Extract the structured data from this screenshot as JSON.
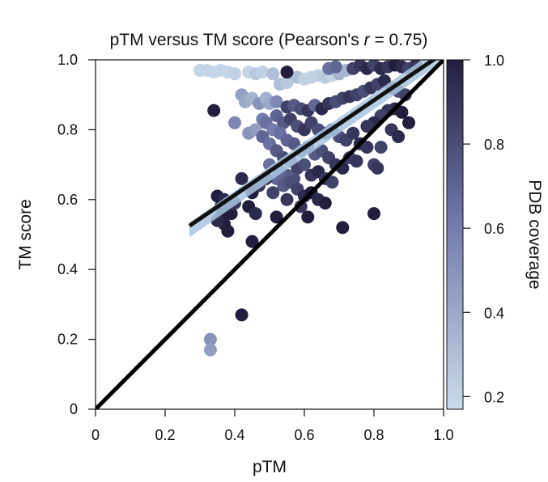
{
  "chart_data": {
    "type": "scatter",
    "title_main": "pTM versus TM score (Pearson's ",
    "title_r": "r",
    "title_tail": " = 0.75)",
    "xlabel": "pTM",
    "ylabel": "TM score",
    "xlim": [
      0,
      1
    ],
    "ylim": [
      0,
      1
    ],
    "x_ticks": [
      0,
      0.2,
      0.4,
      0.6,
      0.8,
      1.0
    ],
    "x_tick_labels": [
      "0",
      "0.2",
      "0.4",
      "0.6",
      "0.8",
      "1.0"
    ],
    "y_ticks": [
      0,
      0.2,
      0.4,
      0.6,
      0.8,
      1.0
    ],
    "y_tick_labels": [
      "0",
      "0.2",
      "0.4",
      "0.6",
      "0.8",
      "1.0"
    ],
    "grid": false,
    "colorbar": {
      "label": "PDB coverage",
      "range": [
        0.17,
        1.0
      ],
      "ticks": [
        0.2,
        0.4,
        0.6,
        0.8,
        1.0
      ],
      "tick_labels": [
        "0.2",
        "0.4",
        "0.6",
        "0.8",
        "1.0"
      ],
      "color_low": "#c9dcea",
      "color_mid": "#6f77a8",
      "color_high": "#221e3e",
      "placement": "right"
    },
    "reference_line": {
      "from": [
        0,
        0
      ],
      "to": [
        1,
        1
      ],
      "color": "#000000"
    },
    "fit_line": {
      "from": [
        0.27,
        0.525
      ],
      "to": [
        1.0,
        1.02
      ],
      "color": "#111111",
      "band_color": "#a9c6e0"
    },
    "points": [
      [
        0.3,
        0.97,
        0.2
      ],
      [
        0.32,
        0.97,
        0.2
      ],
      [
        0.34,
        0.965,
        0.2
      ],
      [
        0.36,
        0.97,
        0.2
      ],
      [
        0.38,
        0.965,
        0.2
      ],
      [
        0.4,
        0.96,
        0.22
      ],
      [
        0.44,
        0.965,
        0.2
      ],
      [
        0.46,
        0.96,
        0.25
      ],
      [
        0.48,
        0.965,
        0.22
      ],
      [
        0.51,
        0.96,
        0.3
      ],
      [
        0.53,
        0.93,
        0.3
      ],
      [
        0.55,
        0.935,
        0.25
      ],
      [
        0.58,
        0.95,
        0.3
      ],
      [
        0.6,
        0.945,
        0.22
      ],
      [
        0.62,
        0.95,
        0.22
      ],
      [
        0.64,
        0.955,
        0.22
      ],
      [
        0.66,
        0.95,
        0.25
      ],
      [
        0.68,
        0.955,
        0.2
      ],
      [
        0.7,
        0.96,
        0.35
      ],
      [
        0.72,
        0.97,
        0.35
      ],
      [
        0.55,
        0.965,
        1.0
      ],
      [
        0.67,
        0.975,
        0.65
      ],
      [
        0.69,
        0.98,
        0.7
      ],
      [
        0.74,
        0.975,
        0.85
      ],
      [
        0.76,
        0.985,
        0.9
      ],
      [
        0.78,
        0.975,
        0.95
      ],
      [
        0.8,
        0.985,
        0.85
      ],
      [
        0.82,
        0.975,
        0.95
      ],
      [
        0.84,
        0.98,
        0.9
      ],
      [
        0.86,
        0.985,
        1.0
      ],
      [
        0.88,
        0.98,
        0.95
      ],
      [
        0.9,
        0.975,
        0.85
      ],
      [
        0.92,
        0.985,
        0.9
      ],
      [
        0.42,
        0.9,
        0.45
      ],
      [
        0.43,
        0.88,
        0.4
      ],
      [
        0.45,
        0.89,
        0.35
      ],
      [
        0.47,
        0.875,
        0.5
      ],
      [
        0.49,
        0.89,
        0.35
      ],
      [
        0.5,
        0.875,
        0.4
      ],
      [
        0.52,
        0.88,
        0.55
      ],
      [
        0.44,
        0.79,
        0.5
      ],
      [
        0.46,
        0.8,
        0.45
      ],
      [
        0.48,
        0.83,
        0.6
      ],
      [
        0.4,
        0.82,
        0.55
      ],
      [
        0.34,
        0.855,
        1.0
      ],
      [
        0.55,
        0.865,
        0.85
      ],
      [
        0.57,
        0.87,
        0.75
      ],
      [
        0.59,
        0.86,
        0.8
      ],
      [
        0.61,
        0.855,
        0.9
      ],
      [
        0.63,
        0.87,
        0.7
      ],
      [
        0.65,
        0.86,
        0.95
      ],
      [
        0.67,
        0.875,
        0.9
      ],
      [
        0.69,
        0.88,
        0.8
      ],
      [
        0.71,
        0.89,
        0.85
      ],
      [
        0.73,
        0.895,
        0.9
      ],
      [
        0.75,
        0.9,
        0.85
      ],
      [
        0.77,
        0.91,
        0.8
      ],
      [
        0.79,
        0.92,
        0.9
      ],
      [
        0.81,
        0.93,
        0.85
      ],
      [
        0.83,
        0.94,
        0.95
      ],
      [
        0.85,
        0.92,
        0.9
      ],
      [
        0.87,
        0.91,
        0.8
      ],
      [
        0.89,
        0.9,
        0.85
      ],
      [
        0.86,
        0.86,
        0.95
      ],
      [
        0.84,
        0.855,
        0.9
      ],
      [
        0.82,
        0.84,
        0.85
      ],
      [
        0.8,
        0.82,
        0.95
      ],
      [
        0.78,
        0.81,
        0.9
      ],
      [
        0.88,
        0.85,
        1.0
      ],
      [
        0.9,
        0.82,
        1.0
      ],
      [
        0.85,
        0.8,
        0.9
      ],
      [
        0.87,
        0.78,
        0.95
      ],
      [
        0.52,
        0.84,
        0.7
      ],
      [
        0.54,
        0.82,
        0.75
      ],
      [
        0.56,
        0.83,
        0.85
      ],
      [
        0.58,
        0.81,
        0.8
      ],
      [
        0.6,
        0.8,
        0.9
      ],
      [
        0.62,
        0.82,
        0.85
      ],
      [
        0.64,
        0.8,
        0.8
      ],
      [
        0.66,
        0.79,
        0.85
      ],
      [
        0.68,
        0.8,
        0.75
      ],
      [
        0.7,
        0.78,
        0.8
      ],
      [
        0.72,
        0.77,
        0.85
      ],
      [
        0.74,
        0.79,
        0.9
      ],
      [
        0.76,
        0.76,
        0.95
      ],
      [
        0.78,
        0.75,
        0.9
      ],
      [
        0.82,
        0.75,
        0.85
      ],
      [
        0.49,
        0.82,
        0.65
      ],
      [
        0.51,
        0.8,
        0.6
      ],
      [
        0.53,
        0.79,
        0.65
      ],
      [
        0.55,
        0.77,
        0.7
      ],
      [
        0.57,
        0.76,
        0.75
      ],
      [
        0.59,
        0.74,
        0.7
      ],
      [
        0.61,
        0.75,
        0.8
      ],
      [
        0.63,
        0.73,
        0.75
      ],
      [
        0.65,
        0.74,
        0.8
      ],
      [
        0.67,
        0.72,
        0.85
      ],
      [
        0.69,
        0.7,
        0.9
      ],
      [
        0.71,
        0.69,
        0.95
      ],
      [
        0.73,
        0.72,
        0.85
      ],
      [
        0.75,
        0.71,
        0.9
      ],
      [
        0.48,
        0.78,
        0.7
      ],
      [
        0.5,
        0.76,
        0.65
      ],
      [
        0.52,
        0.74,
        0.75
      ],
      [
        0.54,
        0.72,
        0.8
      ],
      [
        0.56,
        0.71,
        0.7
      ],
      [
        0.58,
        0.69,
        0.85
      ],
      [
        0.6,
        0.7,
        0.8
      ],
      [
        0.62,
        0.67,
        0.9
      ],
      [
        0.64,
        0.68,
        0.95
      ],
      [
        0.66,
        0.66,
        0.9
      ],
      [
        0.68,
        0.65,
        0.85
      ],
      [
        0.57,
        0.66,
        0.8
      ],
      [
        0.55,
        0.67,
        0.75
      ],
      [
        0.53,
        0.68,
        0.7
      ],
      [
        0.5,
        0.7,
        0.65
      ],
      [
        0.52,
        0.66,
        0.7
      ],
      [
        0.54,
        0.64,
        0.75
      ],
      [
        0.56,
        0.65,
        0.8
      ],
      [
        0.58,
        0.63,
        0.85
      ],
      [
        0.6,
        0.61,
        0.95
      ],
      [
        0.62,
        0.62,
        1.0
      ],
      [
        0.64,
        0.6,
        0.95
      ],
      [
        0.66,
        0.59,
        1.0
      ],
      [
        0.59,
        0.58,
        0.9
      ],
      [
        0.61,
        0.55,
        1.0
      ],
      [
        0.55,
        0.6,
        0.9
      ],
      [
        0.51,
        0.62,
        0.85
      ],
      [
        0.49,
        0.66,
        0.95
      ],
      [
        0.47,
        0.64,
        0.9
      ],
      [
        0.45,
        0.62,
        1.0
      ],
      [
        0.42,
        0.66,
        0.95
      ],
      [
        0.44,
        0.58,
        1.0
      ],
      [
        0.46,
        0.56,
        0.95
      ],
      [
        0.52,
        0.55,
        1.0
      ],
      [
        0.45,
        0.48,
        1.0
      ],
      [
        0.35,
        0.61,
        1.0
      ],
      [
        0.37,
        0.6,
        0.95
      ],
      [
        0.36,
        0.58,
        1.0
      ],
      [
        0.38,
        0.57,
        0.9
      ],
      [
        0.36,
        0.55,
        1.0
      ],
      [
        0.37,
        0.53,
        1.0
      ],
      [
        0.35,
        0.54,
        0.95
      ],
      [
        0.39,
        0.56,
        1.0
      ],
      [
        0.4,
        0.59,
        0.9
      ],
      [
        0.38,
        0.51,
        1.0
      ],
      [
        0.71,
        0.52,
        1.0
      ],
      [
        0.8,
        0.56,
        1.0
      ],
      [
        0.8,
        0.7,
        0.85
      ],
      [
        0.81,
        0.69,
        0.9
      ],
      [
        0.42,
        0.27,
        1.0
      ],
      [
        0.33,
        0.2,
        0.5
      ],
      [
        0.33,
        0.17,
        0.45
      ]
    ]
  }
}
